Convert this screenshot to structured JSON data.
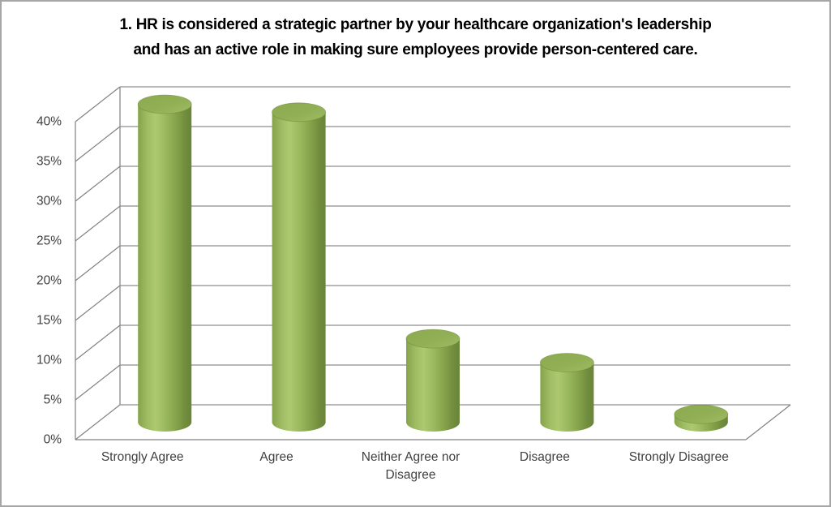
{
  "window": {
    "background_color": "#ffffff",
    "border_color": "#a6a6a6"
  },
  "chart_data": {
    "type": "bar",
    "subtype": "3d-cylinder",
    "title": "1. HR is considered a strategic partner by your healthcare organization's leadership and has an active role in making sure employees provide person-centered care.",
    "title_lines": [
      "1. HR is considered a strategic partner by your healthcare organization's leadership",
      "and has an active role in making sure employees provide person-centered care."
    ],
    "categories": [
      "Strongly Agree",
      "Agree",
      "Neither Agree nor Disagree",
      "Disagree",
      "Strongly Disagree"
    ],
    "values": [
      40,
      39,
      10.5,
      7.5,
      1
    ],
    "unit": "%",
    "xlabel": "",
    "ylabel": "",
    "y_axis": {
      "min": 0,
      "max": 40,
      "step": 5,
      "tick_labels": [
        "0%",
        "5%",
        "10%",
        "15%",
        "20%",
        "25%",
        "30%",
        "35%",
        "40%"
      ]
    },
    "legend": "none",
    "gridlines": true,
    "colors": {
      "cylinder_base": "#9bbb59",
      "cylinder_highlight": "#acc971",
      "cylinder_shadow": "#698539",
      "cylinder_top": "#91af55",
      "gridline": "#8e8e8e",
      "axis_line": "#808080",
      "tick_text": "#3f3f3f",
      "category_text": "#3f3f3f",
      "title_text": "#000000"
    }
  }
}
